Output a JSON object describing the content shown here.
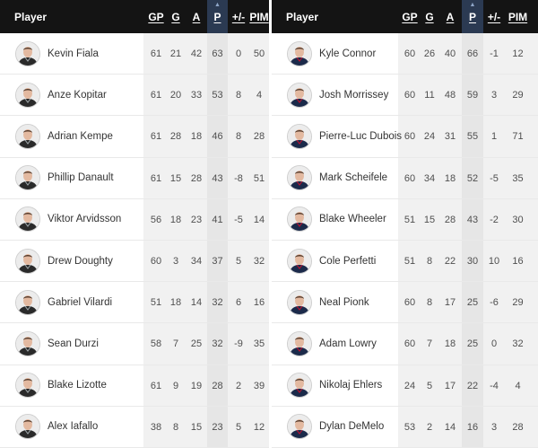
{
  "columns": {
    "player": "Player",
    "gp": "GP",
    "g": "G",
    "a": "A",
    "p": "P",
    "plusminus": "+/-",
    "pim": "PIM"
  },
  "sorted_column": "P",
  "sort_arrow": "▲",
  "colors": {
    "header_bg": "#141414",
    "sorted_header_bg": "#2b3a52",
    "column_shade": "#f1f1f1",
    "sorted_column_shade": "#e6e6e6",
    "row_border": "#e9e9e9"
  },
  "left_table": {
    "rows": [
      {
        "name": "Kevin Fiala",
        "gp": "61",
        "g": "21",
        "a": "42",
        "p": "63",
        "pm": "0",
        "pim": "50",
        "jersey": "dark"
      },
      {
        "name": "Anze Kopitar",
        "gp": "61",
        "g": "20",
        "a": "33",
        "p": "53",
        "pm": "8",
        "pim": "4",
        "jersey": "dark"
      },
      {
        "name": "Adrian Kempe",
        "gp": "61",
        "g": "28",
        "a": "18",
        "p": "46",
        "pm": "8",
        "pim": "28",
        "jersey": "dark"
      },
      {
        "name": "Phillip Danault",
        "gp": "61",
        "g": "15",
        "a": "28",
        "p": "43",
        "pm": "-8",
        "pim": "51",
        "jersey": "dark"
      },
      {
        "name": "Viktor Arvidsson",
        "gp": "56",
        "g": "18",
        "a": "23",
        "p": "41",
        "pm": "-5",
        "pim": "14",
        "jersey": "dark"
      },
      {
        "name": "Drew Doughty",
        "gp": "60",
        "g": "3",
        "a": "34",
        "p": "37",
        "pm": "5",
        "pim": "32",
        "jersey": "dark"
      },
      {
        "name": "Gabriel Vilardi",
        "gp": "51",
        "g": "18",
        "a": "14",
        "p": "32",
        "pm": "6",
        "pim": "16",
        "jersey": "dark"
      },
      {
        "name": "Sean Durzi",
        "gp": "58",
        "g": "7",
        "a": "25",
        "p": "32",
        "pm": "-9",
        "pim": "35",
        "jersey": "dark"
      },
      {
        "name": "Blake Lizotte",
        "gp": "61",
        "g": "9",
        "a": "19",
        "p": "28",
        "pm": "2",
        "pim": "39",
        "jersey": "dark"
      },
      {
        "name": "Alex Iafallo",
        "gp": "38",
        "g": "8",
        "a": "15",
        "p": "23",
        "pm": "5",
        "pim": "12",
        "jersey": "dark"
      }
    ]
  },
  "right_table": {
    "rows": [
      {
        "name": "Kyle Connor",
        "gp": "60",
        "g": "26",
        "a": "40",
        "p": "66",
        "pm": "-1",
        "pim": "12",
        "jersey": "navy"
      },
      {
        "name": "Josh Morrissey",
        "gp": "60",
        "g": "11",
        "a": "48",
        "p": "59",
        "pm": "3",
        "pim": "29",
        "jersey": "navy"
      },
      {
        "name": "Pierre-Luc Dubois",
        "gp": "60",
        "g": "24",
        "a": "31",
        "p": "55",
        "pm": "1",
        "pim": "71",
        "jersey": "navy"
      },
      {
        "name": "Mark Scheifele",
        "gp": "60",
        "g": "34",
        "a": "18",
        "p": "52",
        "pm": "-5",
        "pim": "35",
        "jersey": "navy"
      },
      {
        "name": "Blake Wheeler",
        "gp": "51",
        "g": "15",
        "a": "28",
        "p": "43",
        "pm": "-2",
        "pim": "30",
        "jersey": "navy"
      },
      {
        "name": "Cole Perfetti",
        "gp": "51",
        "g": "8",
        "a": "22",
        "p": "30",
        "pm": "10",
        "pim": "16",
        "jersey": "navy"
      },
      {
        "name": "Neal Pionk",
        "gp": "60",
        "g": "8",
        "a": "17",
        "p": "25",
        "pm": "-6",
        "pim": "29",
        "jersey": "navy"
      },
      {
        "name": "Adam Lowry",
        "gp": "60",
        "g": "7",
        "a": "18",
        "p": "25",
        "pm": "0",
        "pim": "32",
        "jersey": "navy"
      },
      {
        "name": "Nikolaj Ehlers",
        "gp": "24",
        "g": "5",
        "a": "17",
        "p": "22",
        "pm": "-4",
        "pim": "4",
        "jersey": "navy"
      },
      {
        "name": "Dylan DeMelo",
        "gp": "53",
        "g": "2",
        "a": "14",
        "p": "16",
        "pm": "3",
        "pim": "28",
        "jersey": "navy"
      }
    ]
  }
}
